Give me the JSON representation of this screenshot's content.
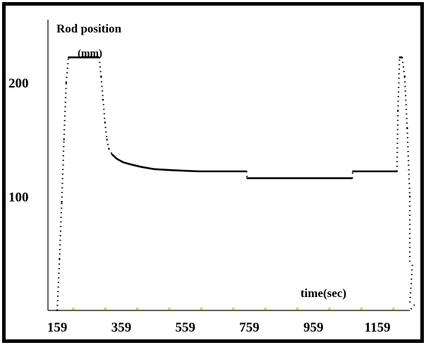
{
  "chart_data": {
    "type": "line",
    "title": "",
    "ylabel": "Rod position",
    "yunit": "(mm)",
    "xlabel": "time(sec)",
    "xlim": [
      130,
      1260
    ],
    "ylim": [
      0,
      255
    ],
    "x_ticks": [
      159,
      359,
      559,
      759,
      959,
      1159
    ],
    "y_ticks": [
      100,
      200
    ],
    "grid": false,
    "legend": "none",
    "colors": {
      "line": "#000000",
      "axis": "#000000",
      "minor_tick": "#d8d800"
    },
    "series": [
      {
        "x": [
          159,
          166,
          173,
          180,
          187,
          194,
          290,
          296,
          302,
          308,
          314,
          320,
          330,
          345,
          365,
          390,
          420,
          460,
          520,
          600,
          680,
          750,
          752,
          760,
          900,
          1080,
          1082,
          1095,
          1220,
          1223,
          1228,
          1236,
          1244,
          1252,
          1260,
          1268,
          1275,
          1280
        ],
        "y": [
          0,
          45,
          95,
          150,
          200,
          222,
          222,
          205,
          185,
          165,
          150,
          142,
          137,
          133,
          130,
          128,
          126,
          124,
          123,
          122,
          122,
          122,
          116,
          116,
          116,
          116,
          122,
          122,
          122,
          175,
          222,
          222,
          205,
          160,
          100,
          40,
          5,
          0
        ]
      }
    ]
  }
}
